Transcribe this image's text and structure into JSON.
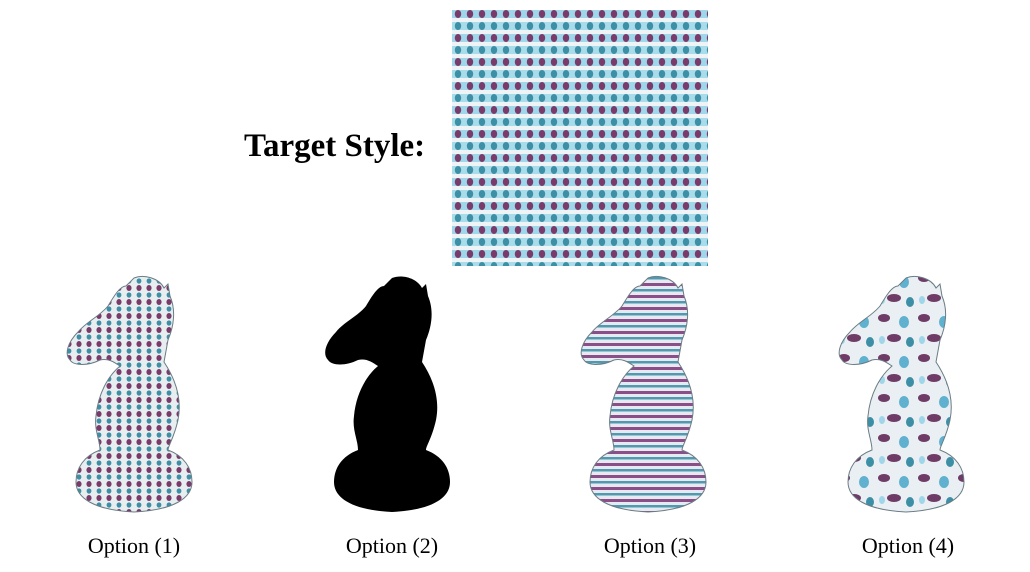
{
  "target": {
    "label": "Target Style:"
  },
  "options": [
    {
      "label": "Option (1)",
      "style": "striped-dots"
    },
    {
      "label": "Option (2)",
      "style": "silhouette"
    },
    {
      "label": "Option (3)",
      "style": "stripes"
    },
    {
      "label": "Option (4)",
      "style": "blotches"
    }
  ],
  "colors": {
    "light_blue": "#a9dceb",
    "purple": "#7a3b6b",
    "teal": "#3d8fa5",
    "white": "#f4f6f7",
    "black": "#000000"
  }
}
